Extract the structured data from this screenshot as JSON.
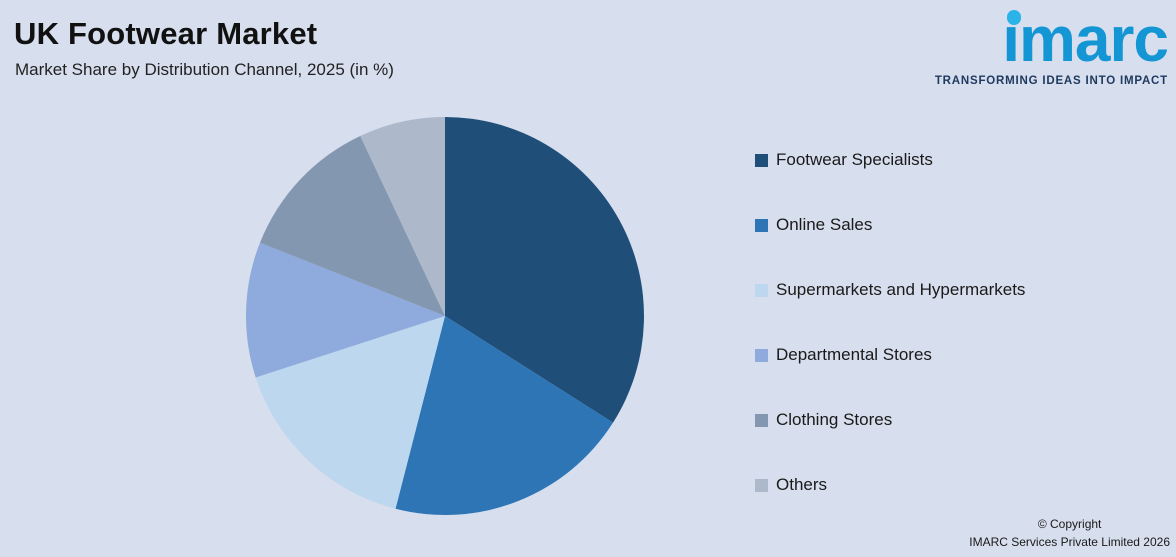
{
  "header": {
    "title": "UK Footwear Market",
    "subtitle": "Market Share by Distribution Channel, 2025 (in %)"
  },
  "logo": {
    "text": "imarc",
    "tagline": "TRANSFORMING IDEAS INTO IMPACT",
    "text_color": "#1496d4",
    "dot_color": "#29b3e8",
    "tagline_color": "#1f3a60"
  },
  "chart_data": {
    "type": "pie",
    "title": "UK Footwear Market",
    "subtitle": "Market Share by Distribution Channel, 2025 (in %)",
    "unit": "%",
    "year": "2025",
    "legend_position": "right",
    "start_angle_deg": 0,
    "direction": "clockwise",
    "background_color": "#d7deed",
    "slices": [
      {
        "label": "Footwear Specialists",
        "value": 34,
        "color": "#1F4E79"
      },
      {
        "label": "Online Sales",
        "value": 20,
        "color": "#2E75B6"
      },
      {
        "label": "Supermarkets and Hypermarkets",
        "value": 16,
        "color": "#BDD7EE"
      },
      {
        "label": "Departmental Stores",
        "value": 11,
        "color": "#8FAADC"
      },
      {
        "label": "Clothing Stores",
        "value": 12,
        "color": "#8497B0"
      },
      {
        "label": "Others",
        "value": 7,
        "color": "#ADB9CA"
      }
    ]
  },
  "footer": {
    "copyright_line1": "© Copyright",
    "copyright_line2": "IMARC Services Private Limited 2026"
  }
}
